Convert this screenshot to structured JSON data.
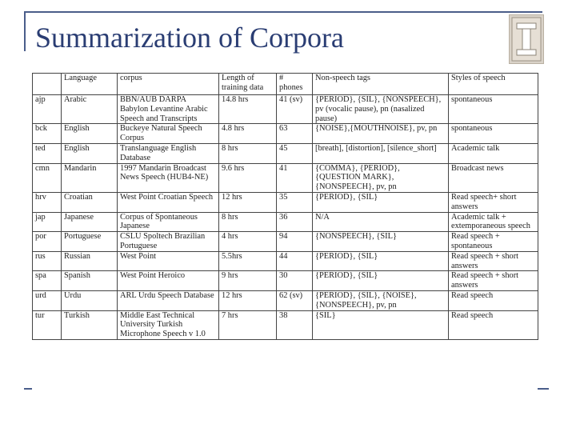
{
  "slide": {
    "title": "Summarization of Corpora"
  },
  "logo": {
    "icon": "university-i-logo"
  },
  "table": {
    "headers": [
      "",
      "Language",
      "corpus",
      "Length of\ntraining data",
      "#\nphones",
      "Non-speech tags",
      "Styles of speech"
    ],
    "rows": [
      [
        "ajp",
        "Arabic",
        "BBN/AUB DARPA Babylon Levantine Arabic Speech and Transcripts",
        "14.8 hrs",
        "41 (sv)",
        "{PERIOD}, {SIL}, {NONSPEECH}, pv (vocalic pause), pn (nasalized pause)",
        "spontaneous"
      ],
      [
        "bck",
        "English",
        "Buckeye Natural Speech Corpus",
        "4.8 hrs",
        "63",
        "{NOISE},{MOUTHNOISE}, pv, pn",
        "spontaneous"
      ],
      [
        "ted",
        "English",
        "Translanguage English Database",
        "8 hrs",
        "45",
        "[breath], [distortion], [silence_short]",
        "Academic talk"
      ],
      [
        "cmn",
        "Mandarin",
        "1997 Mandarin Broadcast News Speech (HUB4-NE)",
        "9.6 hrs",
        "41",
        "{COMMA}, {PERIOD}, {QUESTION MARK}, {NONSPEECH}, pv, pn",
        "Broadcast news"
      ],
      [
        "hrv",
        "Croatian",
        "West Point Croatian Speech",
        "12 hrs",
        "35",
        "{PERIOD}, {SIL}",
        "Read speech+ short answers"
      ],
      [
        "jap",
        "Japanese",
        "Corpus of Spontaneous Japanese",
        "8 hrs",
        "36",
        "N/A",
        "Academic talk + extemporaneous speech"
      ],
      [
        "por",
        "Portuguese",
        "CSLU Spoltech Brazilian Portuguese",
        "4 hrs",
        "94",
        "{NONSPEECH}, {SIL}",
        "Read speech + spontaneous"
      ],
      [
        "rus",
        "Russian",
        "West Point",
        "5.5hrs",
        "44",
        "{PERIOD}, {SIL}",
        "Read speech + short answers"
      ],
      [
        "spa",
        "Spanish",
        "West Point Heroico",
        "9 hrs",
        "30",
        "{PERIOD}, {SIL}",
        "Read speech + short answers"
      ],
      [
        "urd",
        "Urdu",
        "ARL Urdu Speech Database",
        "12 hrs",
        "62 (sv)",
        "{PERIOD}, {SIL}, {NOISE}, {NONSPEECH}, pv, pn",
        "Read speech"
      ],
      [
        "tur",
        "Turkish",
        "Middle East Technical University Turkish Microphone Speech v 1.0",
        "7 hrs",
        "38",
        "{SIL}",
        "Read speech"
      ]
    ]
  }
}
